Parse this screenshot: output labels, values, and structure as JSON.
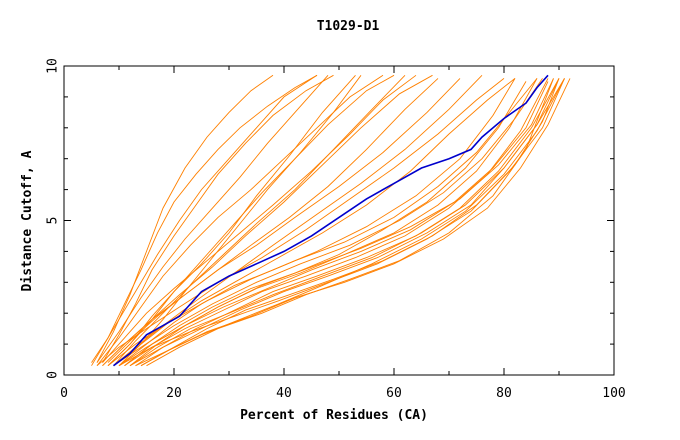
{
  "chart_data": {
    "type": "line",
    "title": "T1029-D1",
    "xlabel": "Percent of Residues (CA)",
    "ylabel": "Distance Cutoff, A",
    "xlim": [
      0,
      100
    ],
    "ylim": [
      0,
      10
    ],
    "x_ticks": [
      "0",
      "20",
      "40",
      "60",
      "80",
      "100"
    ],
    "y_ticks": [
      "0",
      "5",
      "10"
    ],
    "grid": false,
    "colors": {
      "models": "#ff8000",
      "highlight": "#0000cc",
      "axes": "#000000"
    },
    "highlight_series": {
      "x": [
        9,
        12,
        15,
        18,
        21,
        23,
        25,
        27,
        30,
        35,
        40,
        45,
        50,
        55,
        60,
        65,
        70,
        74,
        76,
        80,
        84,
        86,
        88
      ],
      "y": [
        0.3,
        0.7,
        1.3,
        1.6,
        1.9,
        2.3,
        2.7,
        2.9,
        3.2,
        3.6,
        4.0,
        4.5,
        5.1,
        5.7,
        6.2,
        6.7,
        7.0,
        7.3,
        7.7,
        8.3,
        8.8,
        9.3,
        9.7
      ]
    },
    "model_series": [
      {
        "x": [
          5,
          8,
          11,
          14,
          17,
          20,
          24,
          28,
          32,
          37,
          42,
          46
        ],
        "y": [
          0.4,
          1.2,
          2.3,
          3.4,
          4.6,
          5.6,
          6.5,
          7.3,
          8.0,
          8.7,
          9.3,
          9.7
        ]
      },
      {
        "x": [
          6,
          9,
          12,
          15,
          18,
          22,
          26,
          30,
          34,
          38
        ],
        "y": [
          0.4,
          1.4,
          2.6,
          4.0,
          5.4,
          6.7,
          7.7,
          8.5,
          9.2,
          9.7
        ]
      },
      {
        "x": [
          7,
          10,
          13,
          16,
          20,
          24,
          28,
          33,
          38,
          44,
          49
        ],
        "y": [
          0.4,
          1.3,
          2.3,
          3.4,
          4.5,
          5.5,
          6.5,
          7.5,
          8.4,
          9.2,
          9.7
        ]
      },
      {
        "x": [
          6,
          10,
          14,
          18,
          23,
          28,
          34,
          40,
          46,
          52,
          58
        ],
        "y": [
          0.3,
          1.2,
          2.2,
          3.2,
          4.2,
          5.1,
          6.0,
          7.0,
          8.0,
          9.0,
          9.7
        ]
      },
      {
        "x": [
          7,
          11,
          15,
          20,
          26,
          32,
          38,
          45,
          52,
          58,
          64
        ],
        "y": [
          0.4,
          1.2,
          2.0,
          2.8,
          3.7,
          4.6,
          5.5,
          6.6,
          7.8,
          8.9,
          9.7
        ]
      },
      {
        "x": [
          8,
          12,
          17,
          22,
          28,
          34,
          41,
          48,
          55,
          62,
          68
        ],
        "y": [
          0.4,
          1.1,
          1.9,
          2.6,
          3.4,
          4.2,
          5.1,
          6.1,
          7.3,
          8.6,
          9.6
        ]
      },
      {
        "x": [
          5,
          9,
          13,
          17,
          21,
          25,
          30,
          35,
          40,
          46
        ],
        "y": [
          0.3,
          1.5,
          2.7,
          3.9,
          5.0,
          6.0,
          7.0,
          8.0,
          9.0,
          9.7
        ]
      },
      {
        "x": [
          8,
          12,
          16,
          20,
          25,
          30,
          35,
          41,
          47,
          53
        ],
        "y": [
          0.3,
          1.0,
          1.8,
          2.7,
          3.6,
          4.6,
          5.8,
          7.1,
          8.5,
          9.7
        ]
      },
      {
        "x": [
          7,
          11,
          16,
          22,
          28,
          35,
          42,
          50,
          58,
          66,
          72
        ],
        "y": [
          0.3,
          1.0,
          1.8,
          2.6,
          3.4,
          4.2,
          5.1,
          6.1,
          7.2,
          8.5,
          9.6
        ]
      },
      {
        "x": [
          10,
          14,
          18,
          22,
          27,
          32,
          37,
          43,
          49,
          54
        ],
        "y": [
          0.3,
          1.0,
          1.8,
          2.7,
          3.8,
          4.9,
          6.0,
          7.2,
          8.5,
          9.7
        ]
      },
      {
        "x": [
          9,
          13,
          18,
          24,
          31,
          38,
          46,
          54,
          62,
          70,
          76
        ],
        "y": [
          0.3,
          0.9,
          1.6,
          2.4,
          3.3,
          4.2,
          5.2,
          6.2,
          7.3,
          8.6,
          9.7
        ]
      },
      {
        "x": [
          6,
          10,
          15,
          21,
          28,
          36,
          44,
          52,
          60,
          68,
          75,
          80
        ],
        "y": [
          0.3,
          0.9,
          1.5,
          2.2,
          3.0,
          3.8,
          4.7,
          5.7,
          6.7,
          7.8,
          8.9,
          9.6
        ]
      },
      {
        "x": [
          10,
          15,
          20,
          25,
          31,
          38,
          46,
          55,
          64,
          72,
          78,
          82
        ],
        "y": [
          0.3,
          1.0,
          1.7,
          2.3,
          2.9,
          3.4,
          4.0,
          4.8,
          5.8,
          7.0,
          8.4,
          9.6
        ]
      },
      {
        "x": [
          11,
          16,
          21,
          27,
          34,
          42,
          50,
          58,
          66,
          73,
          79,
          84
        ],
        "y": [
          0.3,
          1.0,
          1.6,
          2.2,
          2.8,
          3.3,
          3.9,
          4.7,
          5.6,
          6.7,
          8.0,
          9.5
        ]
      },
      {
        "x": [
          12,
          17,
          22,
          28,
          35,
          43,
          51,
          60,
          68,
          75,
          81,
          86
        ],
        "y": [
          0.3,
          1.0,
          1.6,
          2.2,
          2.8,
          3.3,
          3.9,
          4.6,
          5.5,
          6.6,
          8.0,
          9.6
        ]
      },
      {
        "x": [
          11,
          16,
          22,
          29,
          36,
          44,
          53,
          62,
          70,
          77,
          83,
          88
        ],
        "y": [
          0.3,
          0.9,
          1.5,
          2.1,
          2.7,
          3.2,
          3.8,
          4.5,
          5.4,
          6.5,
          7.9,
          9.6
        ]
      },
      {
        "x": [
          13,
          18,
          24,
          31,
          38,
          46,
          55,
          64,
          72,
          79,
          85,
          90
        ],
        "y": [
          0.3,
          0.9,
          1.5,
          2.1,
          2.7,
          3.2,
          3.8,
          4.5,
          5.4,
          6.6,
          8.0,
          9.6
        ]
      },
      {
        "x": [
          12,
          18,
          25,
          32,
          40,
          48,
          57,
          66,
          74,
          80,
          86,
          91
        ],
        "y": [
          0.3,
          0.9,
          1.5,
          2.1,
          2.7,
          3.2,
          3.8,
          4.6,
          5.5,
          6.7,
          8.1,
          9.6
        ]
      },
      {
        "x": [
          14,
          20,
          26,
          33,
          41,
          49,
          58,
          67,
          75,
          82,
          87,
          90
        ],
        "y": [
          0.3,
          0.9,
          1.5,
          2.1,
          2.6,
          3.1,
          3.7,
          4.5,
          5.5,
          6.8,
          8.2,
          9.6
        ]
      },
      {
        "x": [
          13,
          19,
          26,
          34,
          42,
          51,
          60,
          69,
          77,
          83,
          88,
          92
        ],
        "y": [
          0.3,
          0.8,
          1.4,
          1.9,
          2.5,
          3.0,
          3.6,
          4.4,
          5.4,
          6.7,
          8.1,
          9.6
        ]
      },
      {
        "x": [
          15,
          21,
          28,
          36,
          44,
          52,
          61,
          70,
          78,
          84,
          89
        ],
        "y": [
          0.3,
          0.9,
          1.5,
          2.0,
          2.6,
          3.1,
          3.7,
          4.6,
          5.8,
          7.3,
          9.6
        ]
      },
      {
        "x": [
          10,
          15,
          21,
          28,
          36,
          45,
          54,
          63,
          72,
          79,
          85,
          89
        ],
        "y": [
          0.3,
          0.9,
          1.5,
          2.2,
          2.9,
          3.5,
          4.1,
          4.8,
          5.7,
          6.8,
          8.1,
          9.6
        ]
      },
      {
        "x": [
          9,
          14,
          20,
          27,
          35,
          43,
          52,
          61,
          69,
          76,
          82,
          87
        ],
        "y": [
          0.3,
          0.9,
          1.6,
          2.3,
          3.0,
          3.6,
          4.2,
          5.0,
          5.9,
          7.0,
          8.3,
          9.6
        ]
      },
      {
        "x": [
          14,
          19,
          25,
          32,
          39,
          47,
          56,
          65,
          73,
          80,
          86,
          91
        ],
        "y": [
          0.3,
          0.8,
          1.3,
          1.8,
          2.3,
          2.9,
          3.6,
          4.4,
          5.3,
          6.5,
          7.9,
          9.6
        ]
      },
      {
        "x": [
          12,
          17,
          23,
          30,
          38,
          47,
          56,
          65,
          73,
          80,
          86,
          90
        ],
        "y": [
          0.3,
          0.9,
          1.5,
          2.0,
          2.6,
          3.2,
          3.8,
          4.6,
          5.5,
          6.7,
          8.1,
          9.6
        ]
      },
      {
        "x": [
          8,
          13,
          19,
          26,
          34,
          42,
          51,
          60,
          68,
          75,
          81,
          86
        ],
        "y": [
          0.3,
          1.0,
          1.7,
          2.4,
          3.1,
          3.7,
          4.3,
          5.1,
          6.1,
          7.2,
          8.5,
          9.6
        ]
      },
      {
        "x": [
          10,
          16,
          23,
          31,
          39,
          48,
          57,
          66,
          74,
          81,
          87,
          91
        ],
        "y": [
          0.3,
          0.9,
          1.4,
          1.9,
          2.4,
          3.0,
          3.6,
          4.4,
          5.3,
          6.6,
          8.0,
          9.6
        ]
      },
      {
        "x": [
          7,
          11,
          16,
          21,
          27,
          33,
          40,
          47,
          54,
          61,
          67
        ],
        "y": [
          0.3,
          1.0,
          1.8,
          2.6,
          3.5,
          4.5,
          5.6,
          6.8,
          8.0,
          9.1,
          9.7
        ]
      },
      {
        "x": [
          9,
          13,
          18,
          23,
          29,
          35,
          42,
          49,
          56,
          62
        ],
        "y": [
          0.3,
          1.1,
          2.0,
          2.9,
          3.9,
          4.9,
          6.0,
          7.3,
          8.6,
          9.7
        ]
      },
      {
        "x": [
          6,
          10,
          14,
          18,
          22,
          27,
          32,
          37,
          43,
          48
        ],
        "y": [
          0.4,
          1.4,
          2.5,
          3.5,
          4.4,
          5.4,
          6.4,
          7.5,
          8.7,
          9.7
        ]
      },
      {
        "x": [
          8,
          12,
          16,
          21,
          26,
          31,
          36,
          42,
          48,
          55,
          60
        ],
        "y": [
          0.3,
          1.0,
          1.9,
          2.9,
          3.9,
          4.9,
          5.9,
          7.0,
          8.1,
          9.2,
          9.7
        ]
      },
      {
        "x": [
          9,
          14,
          19,
          25,
          32,
          39,
          47,
          55,
          63,
          70,
          77,
          82
        ],
        "y": [
          0.3,
          1.0,
          1.7,
          2.4,
          3.1,
          3.8,
          4.6,
          5.5,
          6.6,
          7.8,
          8.9,
          9.6
        ]
      },
      {
        "x": [
          11,
          16,
          22,
          29,
          37,
          45,
          54,
          63,
          71,
          78,
          84,
          88
        ],
        "y": [
          0.3,
          1.0,
          1.6,
          2.2,
          2.8,
          3.4,
          4.0,
          4.7,
          5.6,
          6.7,
          8.0,
          9.5
        ]
      }
    ]
  }
}
